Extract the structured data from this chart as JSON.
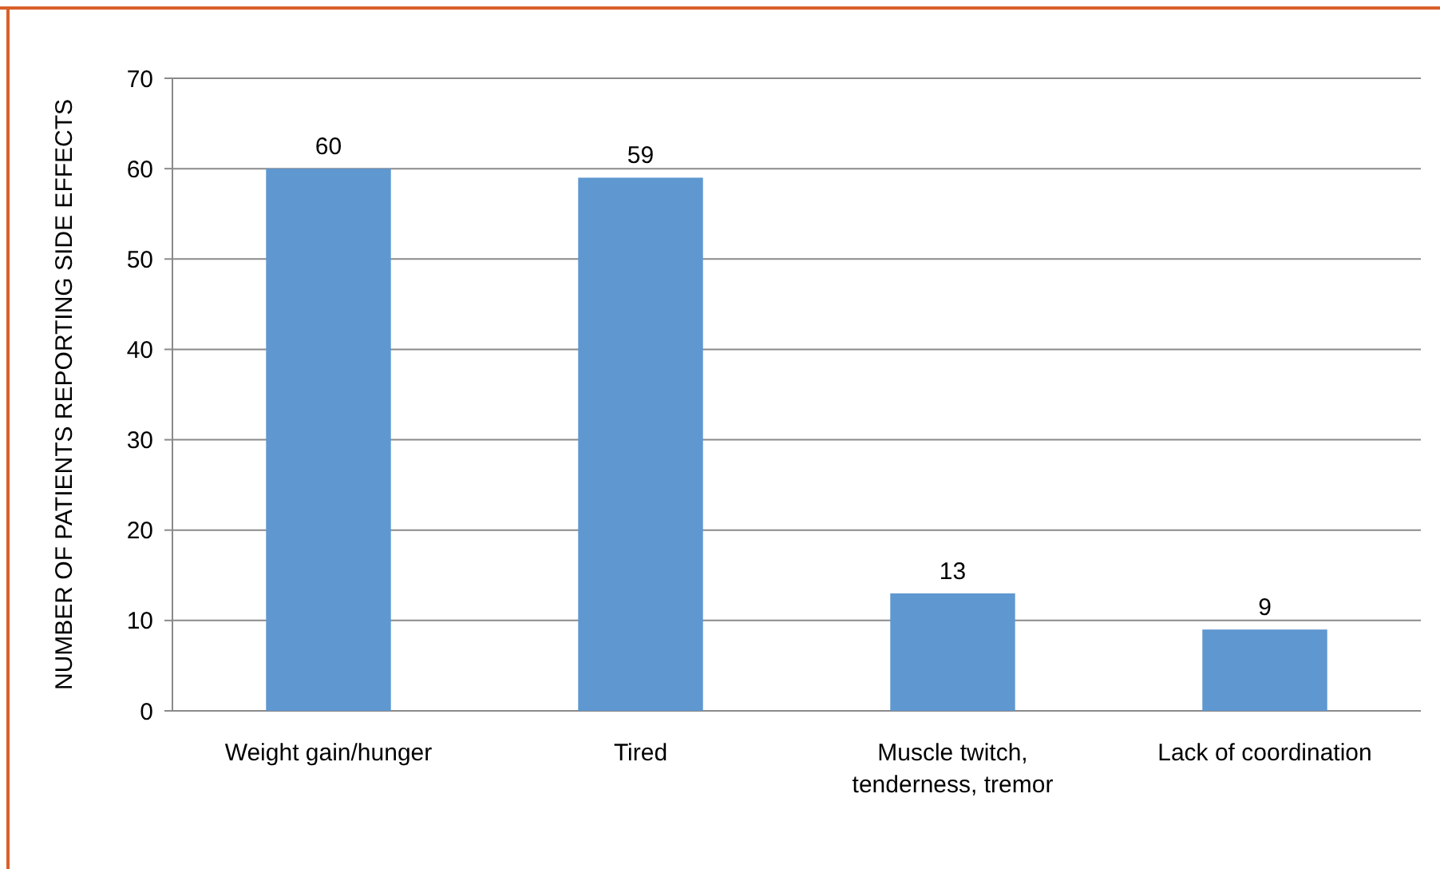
{
  "chart_data": {
    "type": "bar",
    "ylabel": "NUMBER OF PATIENTS REPORTING SIDE EFFECTS",
    "categories": [
      "Weight gain/hunger",
      "Tired",
      "Muscle twitch, tenderness, tremor",
      "Lack of coordination"
    ],
    "values": [
      60,
      59,
      13,
      9
    ],
    "color": "#5f97d0",
    "ylim": [
      0,
      70
    ],
    "yticks": [
      0,
      10,
      20,
      30,
      40,
      50,
      60,
      70
    ],
    "grid": "y",
    "data_labels": true
  }
}
